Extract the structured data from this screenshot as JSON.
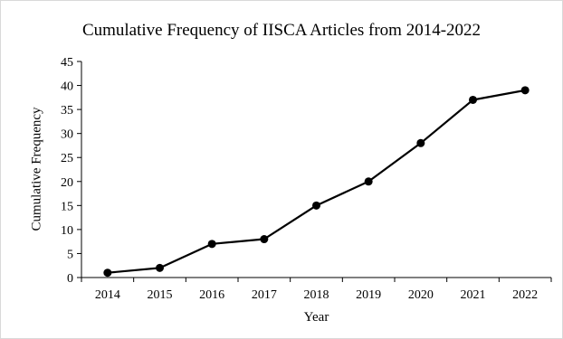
{
  "chart_data": {
    "type": "line",
    "title": "Cumulative Frequency of IISCA Articles from 2014-2022",
    "xlabel": "Year",
    "ylabel": "Cumulative Frequency",
    "categories": [
      "2014",
      "2015",
      "2016",
      "2017",
      "2018",
      "2019",
      "2020",
      "2021",
      "2022"
    ],
    "series": [
      {
        "values": [
          1,
          2,
          7,
          8,
          15,
          20,
          28,
          37,
          39
        ]
      }
    ],
    "ylim": [
      0,
      45
    ],
    "yticks": [
      0,
      5,
      10,
      15,
      20,
      25,
      30,
      35,
      40,
      45
    ],
    "grid": false,
    "legend": "none",
    "colors": {
      "line": "#000000",
      "marker": "#000000",
      "axis": "#000000",
      "frame": "#d9d9d9"
    }
  }
}
